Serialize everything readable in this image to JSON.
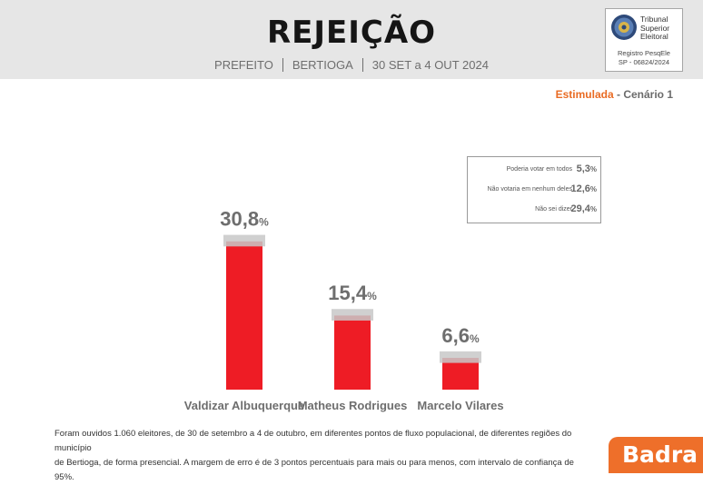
{
  "header": {
    "title": "REJEIÇÃO",
    "cargo": "PREFEITO",
    "municipio": "BERTIOGA",
    "periodo": "30 SET a 4 OUT 2024",
    "bg_color": "#e6e6e6"
  },
  "badge": {
    "line1": "Tribunal",
    "line2": "Superior",
    "line3": "Eleitoral",
    "registro_label": "Registro PesqEle",
    "registro_numero": "SP - 06824/2024",
    "icon": "tse-seal-icon"
  },
  "scenario": {
    "type_label": "Estimulada",
    "separator": " - ",
    "name": "Cenário 1",
    "accent_color": "#e96b23"
  },
  "legend": {
    "items": [
      {
        "label": "Poderia votar em todos",
        "value": "5,3",
        "unit": "%"
      },
      {
        "label": "Não votaria em nenhum deles",
        "value": "12,6",
        "unit": "%"
      },
      {
        "label": "Não sei dizer",
        "value": "29,4",
        "unit": "%"
      }
    ]
  },
  "chart_data": {
    "type": "bar",
    "categories": [
      "Valdizar Albuquerque",
      "Matheus Rodrigues",
      "Marcelo Vilares"
    ],
    "values": [
      30.8,
      15.4,
      6.6
    ],
    "value_labels": [
      "30,8",
      "15,4",
      "6,6"
    ],
    "unit": "%",
    "margin_of_error": 3,
    "bar_color": "#ee1c25",
    "error_band_color": "#c8c8c8",
    "title": "",
    "xlabel": "",
    "ylabel": "",
    "grid": false
  },
  "footnote": {
    "line1": "Foram ouvidos 1.060 eleitores, de 30 de setembro a 4 de outubro, em diferentes pontos de fluxo populacional, de diferentes regiões do município",
    "line2": "de Bertioga, de forma presencial. A margem de erro é de 3 pontos percentuais para mais ou para menos, com intervalo de confiança de 95%."
  },
  "logo": {
    "text": "Badra",
    "color": "#ee6f2a"
  }
}
